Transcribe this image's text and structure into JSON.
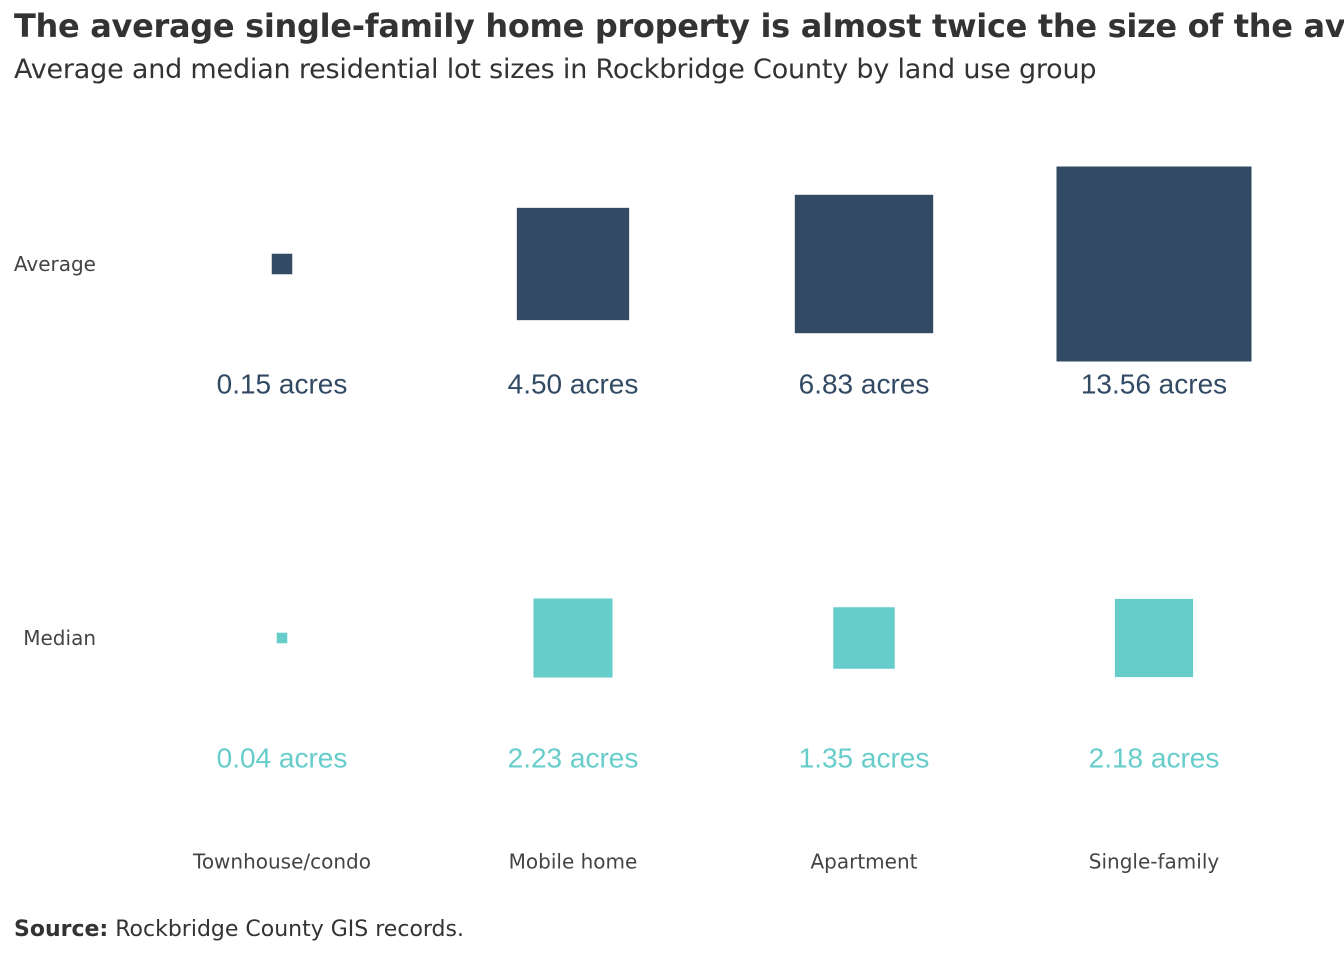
{
  "title": "The average single-family home property is almost twice the size of the average",
  "subtitle": "Average and median residential lot sizes in Rockbridge County by land use group",
  "source": {
    "label": "Source:",
    "text": "Rockbridge County GIS records."
  },
  "colors": {
    "average": "#324a64",
    "median": "#66cdcb",
    "text": "#333333"
  },
  "chart_data": {
    "type": "proportional-square",
    "title": "The average single-family home property is almost twice the size of the average",
    "subtitle": "Average and median residential lot sizes in Rockbridge County by land use group",
    "categories": [
      "Townhouse/condo",
      "Mobile home",
      "Apartment",
      "Single-family"
    ],
    "unit": "acres",
    "series": [
      {
        "name": "Average",
        "values": [
          0.15,
          4.5,
          6.83,
          13.56
        ],
        "labels": [
          "0.15 acres",
          "4.50 acres",
          "6.83 acres",
          "13.56 acres"
        ],
        "color": "#324a64"
      },
      {
        "name": "Median",
        "values": [
          0.04,
          2.23,
          1.35,
          2.18
        ],
        "labels": [
          "0.04 acres",
          "2.23 acres",
          "1.35 acres",
          "2.18 acres"
        ],
        "color": "#66cdcb"
      }
    ]
  }
}
